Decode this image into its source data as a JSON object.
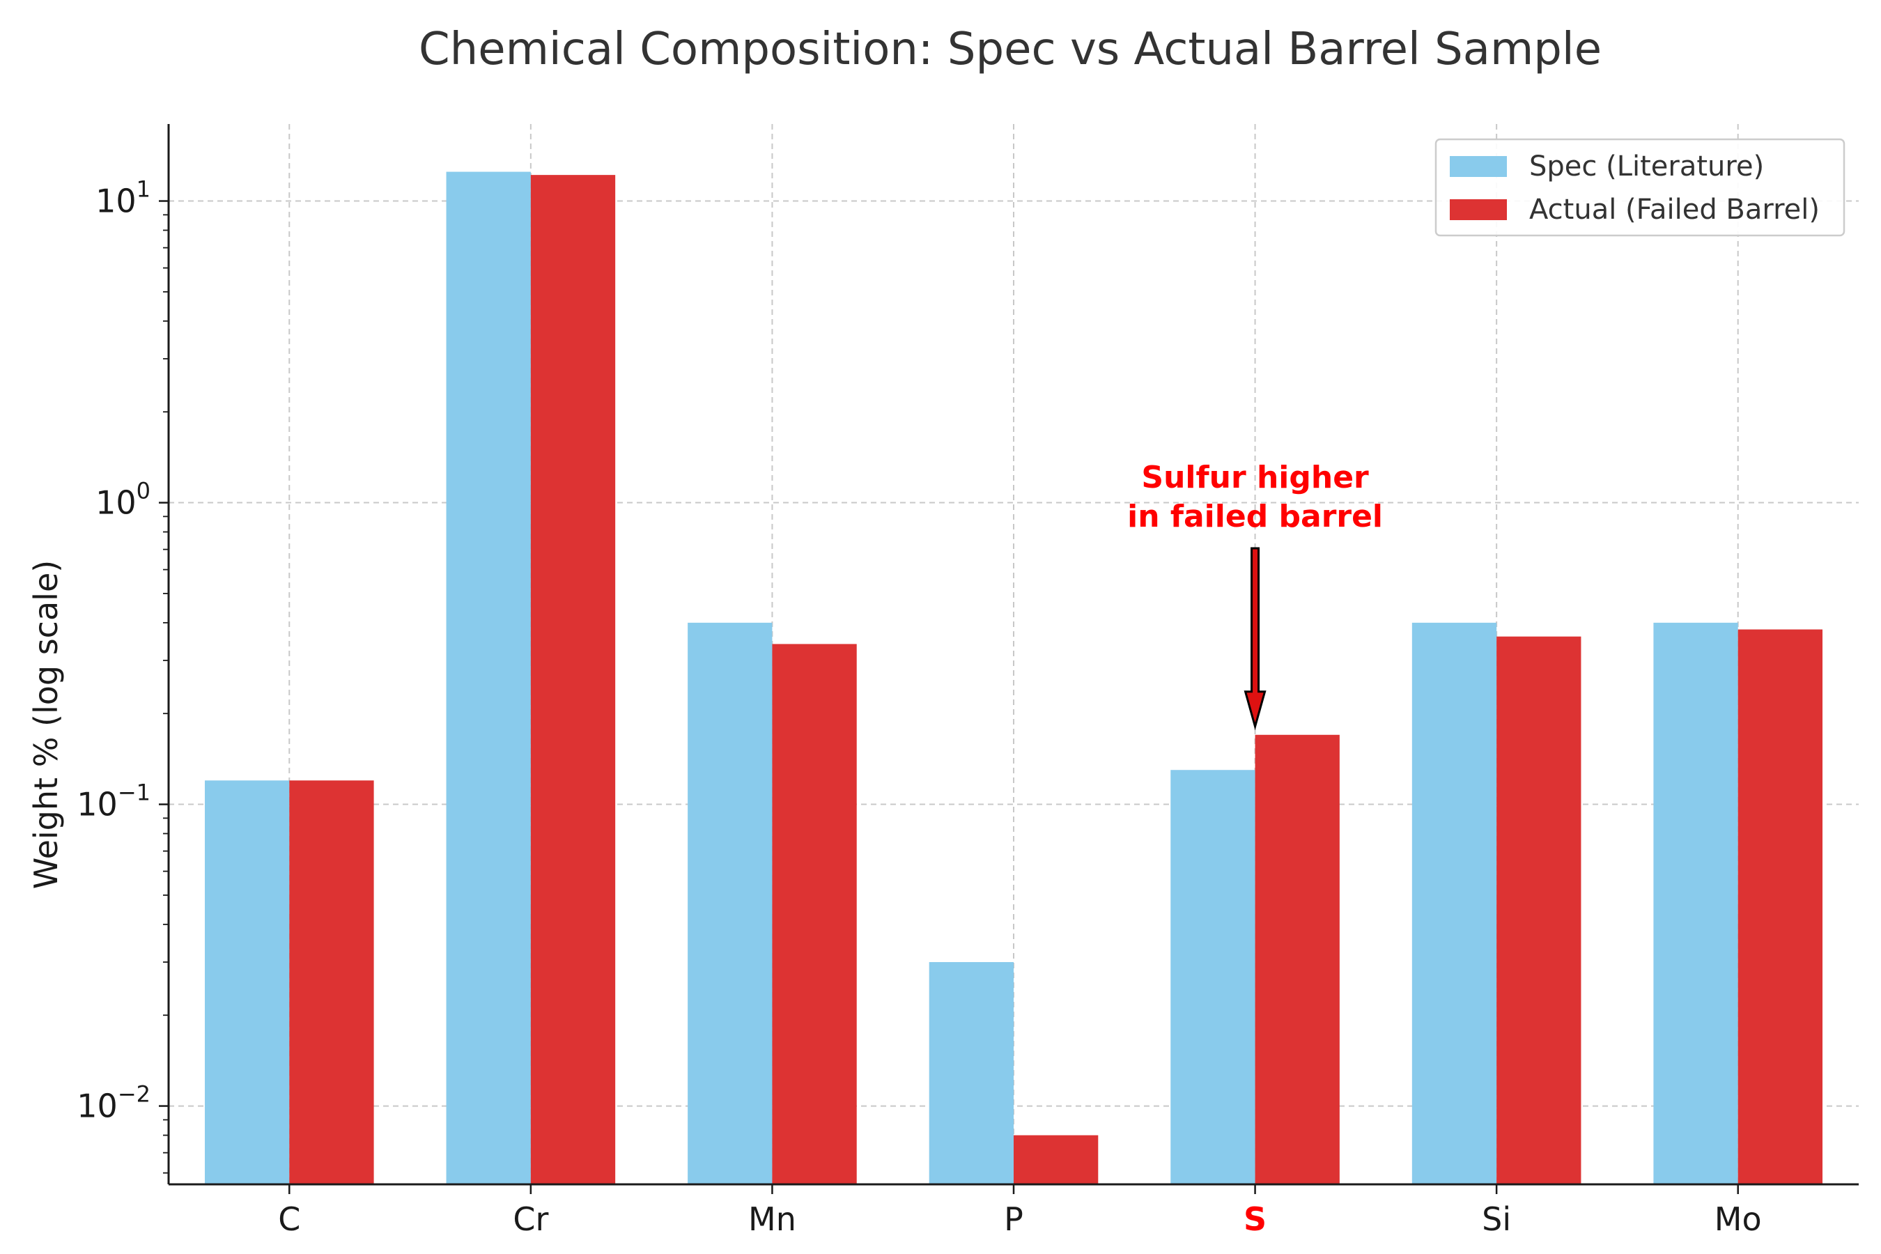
{
  "chart_data": {
    "type": "bar",
    "title": "Chemical Composition: Spec vs Actual Barrel Sample",
    "xlabel": "",
    "ylabel": "Weight % (log scale)",
    "yscale": "log",
    "ylim": [
      0.0055,
      18
    ],
    "yticks": [
      {
        "base": "10",
        "exp": "−2"
      },
      {
        "base": "10",
        "exp": "−1"
      },
      {
        "base": "10",
        "exp": "0"
      },
      {
        "base": "10",
        "exp": "1"
      }
    ],
    "categories": [
      "C",
      "Cr",
      "Mn",
      "P",
      "S",
      "Si",
      "Mo"
    ],
    "highlight_category": "S",
    "series": [
      {
        "name": "Spec (Literature)",
        "color": "#89CBEC",
        "values": [
          0.12,
          12.5,
          0.4,
          0.03,
          0.13,
          0.4,
          0.4
        ]
      },
      {
        "name": "Actual (Failed Barrel)",
        "color": "#DD3333",
        "values": [
          0.12,
          12.2,
          0.34,
          0.008,
          0.17,
          0.36,
          0.38
        ]
      }
    ],
    "grid": true,
    "legend": "top-right",
    "annotation": {
      "lines": [
        "Sulfur higher",
        "in failed barrel"
      ],
      "category": "S",
      "color": "#FF0000"
    }
  }
}
